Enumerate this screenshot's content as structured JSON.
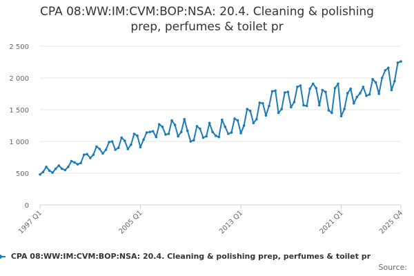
{
  "chart_data": {
    "type": "line",
    "title_lines": [
      "CPA 08:WW:IM:CVM:BOP:NSA: 20.4. Cleaning & polishing",
      "prep, perfumes & toilet pr"
    ],
    "x_ticks": [
      "1997 Q1",
      "2005 Q1",
      "2013 Q1",
      "2021 Q1",
      "2025 Q4"
    ],
    "y_ticks": [
      "0",
      "500",
      "1 000",
      "1 500",
      "2 000",
      "2 500"
    ],
    "ylim": [
      0,
      2500
    ],
    "start_year": 1997,
    "series": [
      {
        "name": "CPA 08:WW:IM:CVM:BOP:NSA: 20.4. Cleaning & polishing prep, perfumes & toilet pr",
        "color": "#1a7ab8",
        "values": [
          480,
          520,
          600,
          540,
          510,
          570,
          620,
          570,
          550,
          600,
          690,
          670,
          640,
          660,
          790,
          800,
          740,
          790,
          920,
          880,
          810,
          870,
          990,
          1000,
          870,
          900,
          1060,
          1010,
          880,
          950,
          1120,
          1090,
          910,
          1030,
          1140,
          1150,
          1160,
          1070,
          1270,
          1230,
          1110,
          1120,
          1330,
          1260,
          1080,
          1150,
          1350,
          1170,
          1000,
          1020,
          1240,
          1200,
          1060,
          1080,
          1290,
          1150,
          1090,
          1070,
          1340,
          1230,
          1120,
          1140,
          1360,
          1330,
          1130,
          1250,
          1510,
          1480,
          1290,
          1350,
          1610,
          1600,
          1410,
          1560,
          1790,
          1800,
          1450,
          1510,
          1770,
          1780,
          1540,
          1620,
          1860,
          1880,
          1570,
          1560,
          1830,
          1910,
          1840,
          1570,
          1810,
          1780,
          1490,
          1450,
          1840,
          1910,
          1400,
          1510,
          1760,
          1830,
          1600,
          1700,
          1760,
          1860,
          1720,
          1740,
          1980,
          1930,
          1750,
          2000,
          2120,
          2160,
          1810,
          1950,
          2240,
          2260
        ]
      }
    ],
    "legend_position": "bottom",
    "grid": true
  },
  "source_label": "Source:"
}
